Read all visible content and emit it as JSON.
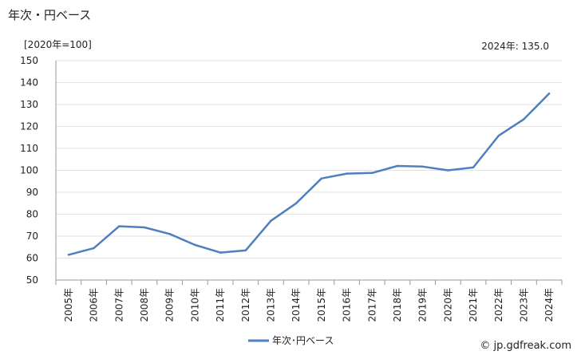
{
  "header": {
    "title": "年次・円ベース",
    "unit": "[2020年=100]",
    "latest": "2024年: 135.0"
  },
  "footer": {
    "credit": "© jp.gdfreak.com"
  },
  "chart_data": {
    "type": "line",
    "title": "年次・円ベース",
    "ylabel": "[2020年=100]",
    "xlabel": "",
    "ylim": [
      50,
      150
    ],
    "yticks": [
      50,
      60,
      70,
      80,
      90,
      100,
      110,
      120,
      130,
      140,
      150
    ],
    "grid": true,
    "legend_position": "bottom-center",
    "categories": [
      "2005年",
      "2006年",
      "2007年",
      "2008年",
      "2009年",
      "2010年",
      "2011年",
      "2012年",
      "2013年",
      "2014年",
      "2015年",
      "2016年",
      "2017年",
      "2018年",
      "2019年",
      "2020年",
      "2021年",
      "2022年",
      "2023年",
      "2024年"
    ],
    "series": [
      {
        "name": "年次･円ベース",
        "color": "#4f7fbd",
        "values": [
          61.5,
          64.5,
          74.5,
          74.0,
          71.0,
          66.0,
          62.5,
          63.5,
          77.0,
          85.0,
          96.3,
          98.5,
          98.8,
          102.0,
          101.7,
          100.0,
          101.3,
          115.8,
          123.3,
          135.0
        ]
      }
    ]
  }
}
